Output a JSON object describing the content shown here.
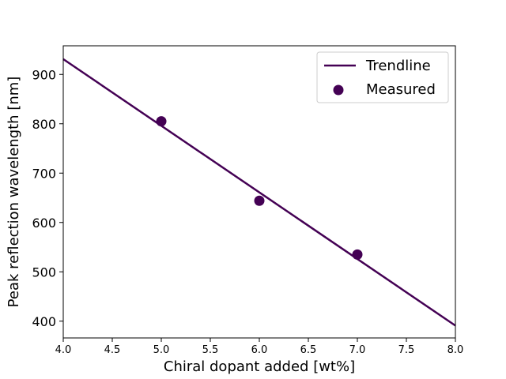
{
  "chart_data": {
    "type": "scatter",
    "xlabel": "Chiral dopant added [wt%]",
    "ylabel": "Peak reflection wavelength [nm]",
    "xlim": [
      4.0,
      8.0
    ],
    "ylim": [
      366,
      958
    ],
    "x_ticks": [
      "4.0",
      "4.5",
      "5.0",
      "5.5",
      "6.0",
      "6.5",
      "7.0",
      "7.5",
      "8.0"
    ],
    "x_tick_values": [
      4.0,
      4.5,
      5.0,
      5.5,
      6.0,
      6.5,
      7.0,
      7.5,
      8.0
    ],
    "y_ticks": [
      "400",
      "500",
      "600",
      "700",
      "800",
      "900"
    ],
    "y_tick_values": [
      400,
      500,
      600,
      700,
      800,
      900
    ],
    "grid": false,
    "legend_position": "top-right",
    "series": [
      {
        "name": "Trendline",
        "kind": "line",
        "color": "#440154",
        "x": [
          4.0,
          8.0
        ],
        "y": [
          931,
          391
        ]
      },
      {
        "name": "Measured",
        "kind": "scatter",
        "color": "#440154",
        "x": [
          5.0,
          6.0,
          7.0
        ],
        "y": [
          805,
          644,
          535
        ]
      }
    ]
  }
}
